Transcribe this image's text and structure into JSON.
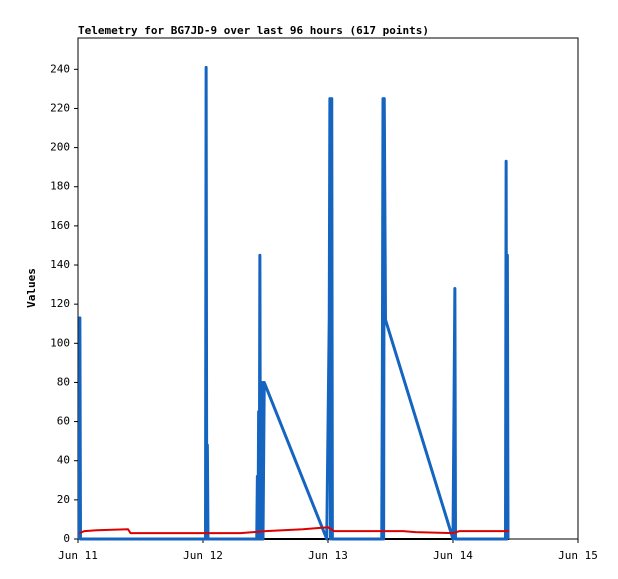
{
  "chart_data": {
    "type": "line",
    "title": "Telemetry for BG7JD-9 over last 96 hours (617 points)",
    "ylabel": "Values",
    "xlim": [
      0,
      4
    ],
    "xticks": [
      {
        "value": 0,
        "label": "Jun 11"
      },
      {
        "value": 1,
        "label": "Jun 12"
      },
      {
        "value": 2,
        "label": "Jun 13"
      },
      {
        "value": 3,
        "label": "Jun 14"
      },
      {
        "value": 4,
        "label": "Jun 15"
      }
    ],
    "ylim": [
      0,
      256
    ],
    "yticks": [
      0,
      20,
      40,
      60,
      80,
      100,
      120,
      140,
      160,
      180,
      200,
      220,
      240
    ],
    "grid": false,
    "series": [
      {
        "color": "#000000",
        "width": 2,
        "x": [
          0.01,
          3.45
        ],
        "values": [
          0,
          0
        ]
      },
      {
        "color": "#1565c0",
        "width": 3,
        "x": [
          0.01,
          0.015,
          0.02,
          1.02,
          1.025,
          1.03,
          1.035,
          1.04,
          1.43,
          1.435,
          1.44,
          1.445,
          1.45,
          1.455,
          1.46,
          1.465,
          1.47,
          1.475,
          1.48,
          1.49,
          1.99,
          2.01,
          2.015,
          2.02,
          2.03,
          2.035,
          2.43,
          2.435,
          2.44,
          2.445,
          2.45,
          2.46,
          3.0,
          3.015,
          3.02,
          3.42,
          3.425,
          3.43,
          3.435,
          3.44
        ],
        "values": [
          0,
          113,
          0,
          0,
          241,
          0,
          48,
          0,
          0,
          32,
          0,
          65,
          0,
          145,
          0,
          65,
          0,
          80,
          0,
          80,
          0,
          113,
          225,
          0,
          225,
          0,
          0,
          88,
          225,
          0,
          225,
          112,
          0,
          128,
          0,
          0,
          193,
          0,
          145,
          0
        ]
      },
      {
        "color": "#dd0000",
        "width": 2,
        "x": [
          0.01,
          0.05,
          0.15,
          0.4,
          0.42,
          1.3,
          1.5,
          1.8,
          2.0,
          2.05,
          2.6,
          2.7,
          3.0,
          3.05,
          3.45
        ],
        "values": [
          3,
          4,
          4.5,
          5,
          3,
          3,
          4,
          5,
          6,
          4,
          4,
          3.5,
          3,
          4,
          4
        ]
      }
    ]
  }
}
